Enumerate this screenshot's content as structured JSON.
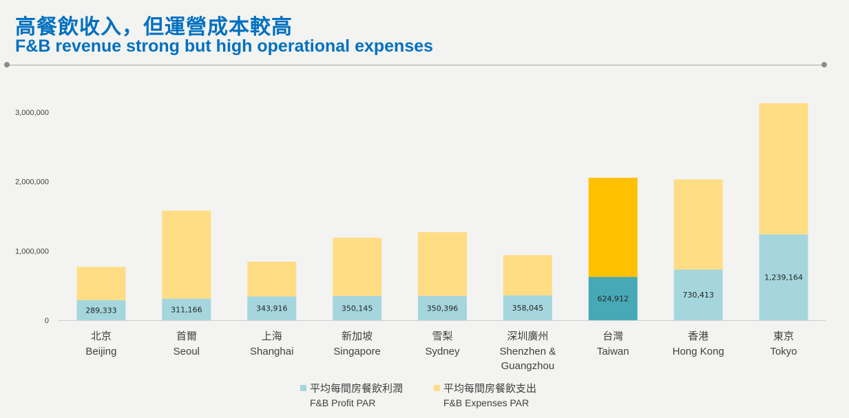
{
  "header": {
    "title_zh": "高餐飲收入，但運營成本較高",
    "title_en": "F&B revenue strong but high operational expenses"
  },
  "colors": {
    "profit": "#a5d6de",
    "expenses": "#ffdd85",
    "profit_highlight": "#47a9b6",
    "expenses_highlight": "#ffc000",
    "title": "#0070c0"
  },
  "legend": {
    "profit_zh": "平均每間房餐飲利潤",
    "profit_en": "F&B Profit PAR",
    "expenses_zh": "平均每間房餐飲支出",
    "expenses_en": "F&B Expenses PAR"
  },
  "chart_data": {
    "type": "bar",
    "stacked": true,
    "categories": [
      {
        "zh": "北京",
        "en": "Beijing"
      },
      {
        "zh": "首爾",
        "en": "Seoul"
      },
      {
        "zh": "上海",
        "en": "Shanghai"
      },
      {
        "zh": "新加坡",
        "en": "Singapore"
      },
      {
        "zh": "雪梨",
        "en": "Sydney"
      },
      {
        "zh": "深圳廣州",
        "en": "Shenzhen & Guangzhou"
      },
      {
        "zh": "台灣",
        "en": "Taiwan"
      },
      {
        "zh": "香港",
        "en": "Hong Kong"
      },
      {
        "zh": "東京",
        "en": "Tokyo"
      }
    ],
    "series": [
      {
        "name": "平均每間房餐飲利潤 F&B Profit PAR",
        "values": [
          289333,
          311166,
          343916,
          350145,
          350396,
          358045,
          624912,
          730413,
          1239164
        ],
        "labels": [
          "289,333",
          "311,166",
          "343,916",
          "350,145",
          "350,396",
          "358,045",
          "624,912",
          "730,413",
          "1,239,164"
        ]
      },
      {
        "name": "平均每間房餐飲支出 F&B Expenses PAR",
        "values": [
          480000,
          1270000,
          500000,
          840000,
          920000,
          580000,
          1430000,
          1300000,
          1890000
        ]
      }
    ],
    "highlight_index": 6,
    "ylim": [
      0,
      3000000
    ],
    "yticks": [
      {
        "value": 0,
        "label": "0"
      },
      {
        "value": 1000000,
        "label": "1,000,000"
      },
      {
        "value": 2000000,
        "label": "2,000,000"
      },
      {
        "value": 3000000,
        "label": "3,000,000"
      }
    ],
    "grid": false,
    "legend_position": "bottom"
  }
}
